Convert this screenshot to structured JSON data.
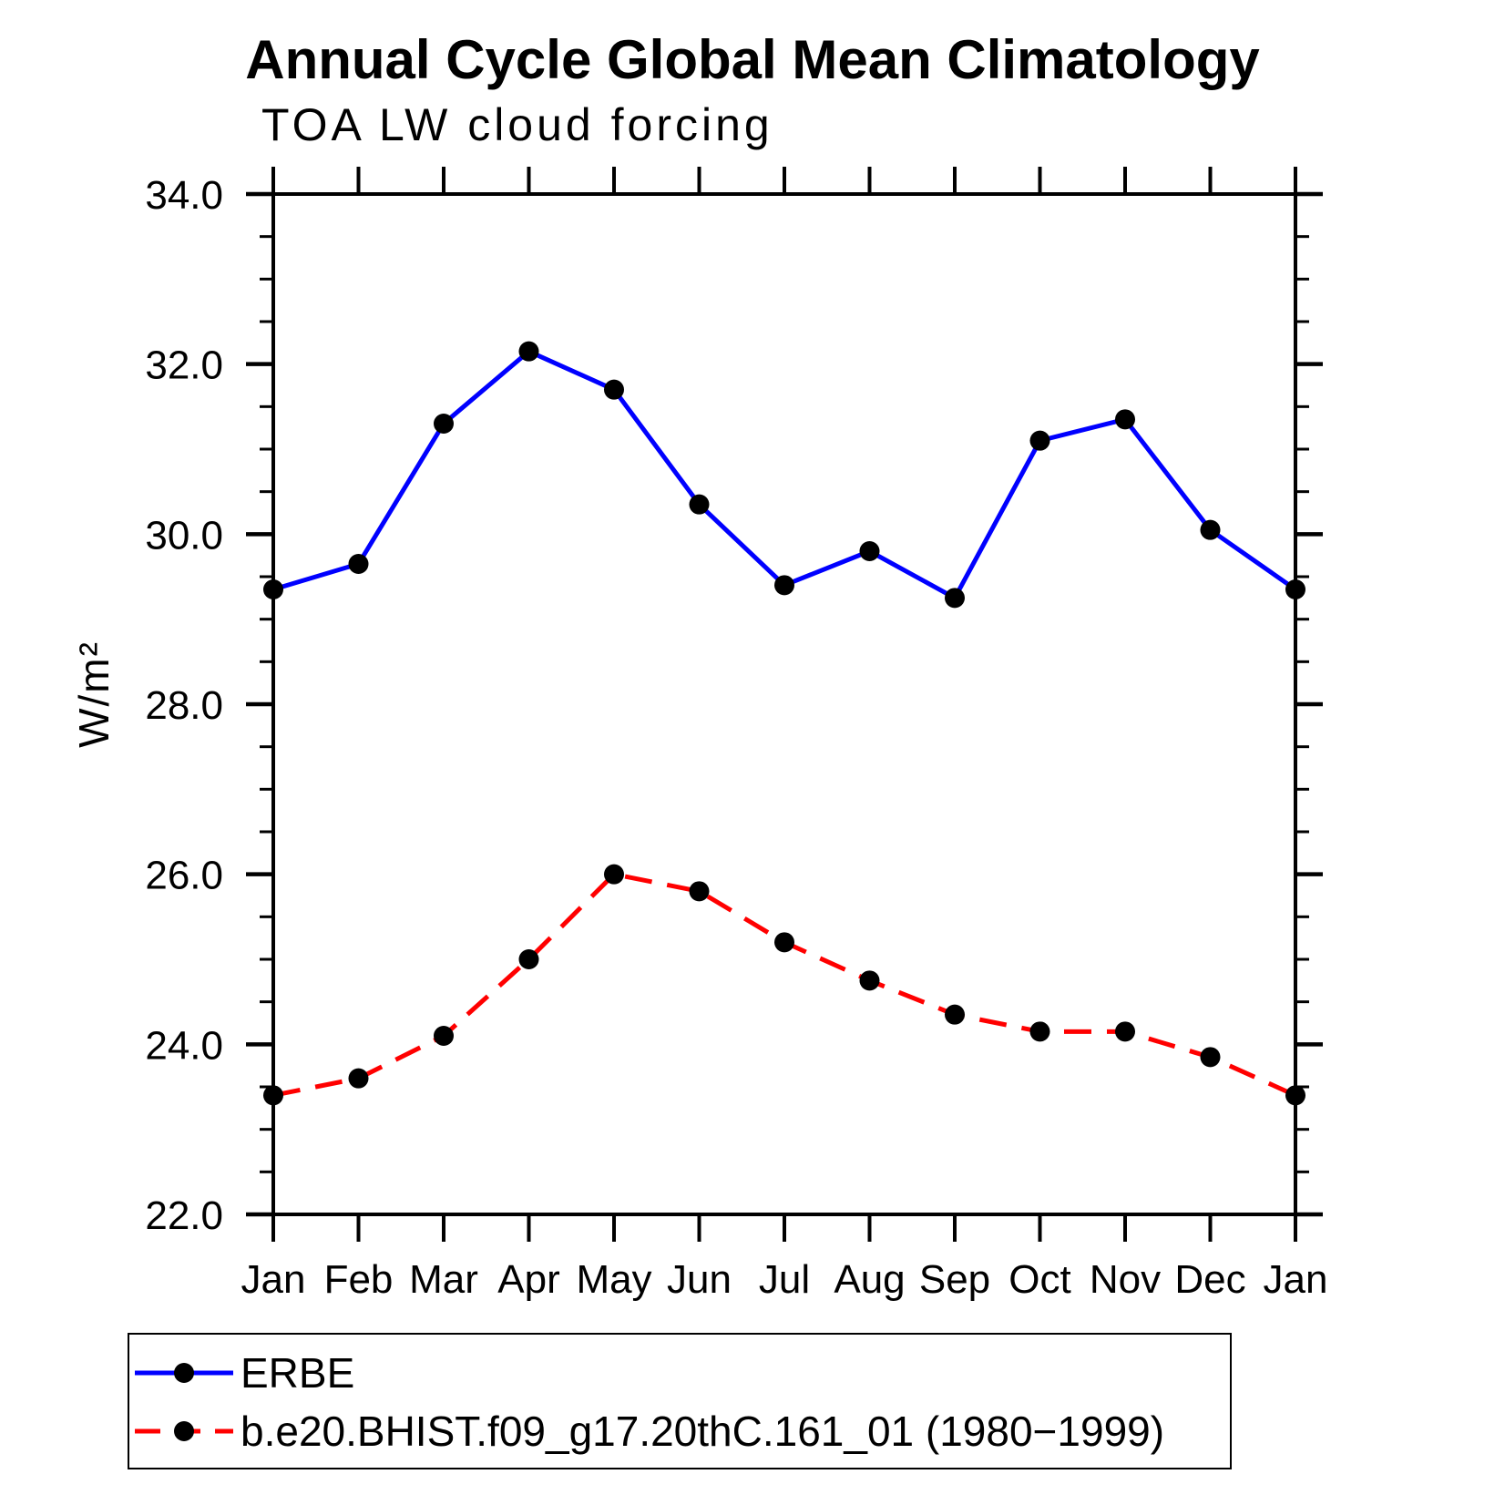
{
  "page": {
    "background": "#ffffff"
  },
  "chart": {
    "title": "Annual Cycle Global Mean Climatology",
    "subtitle": "TOA LW cloud forcing",
    "ylabel": "W/m²"
  },
  "legend": {
    "entries": [
      {
        "label": "ERBE",
        "color": "#0000ff",
        "style": "solid",
        "marker": "circle"
      },
      {
        "label": "b.e20.BHIST.f09_g17.20thC.161_01 (1980−1999)",
        "color": "#ff0000",
        "style": "dashed",
        "marker": "circle"
      }
    ]
  },
  "chart_data": {
    "type": "line",
    "title": "Annual Cycle Global Mean Climatology",
    "subtitle": "TOA LW cloud forcing",
    "xlabel": "",
    "ylabel": "W/m²",
    "categories": [
      "Jan",
      "Feb",
      "Mar",
      "Apr",
      "May",
      "Jun",
      "Jul",
      "Aug",
      "Sep",
      "Oct",
      "Nov",
      "Dec",
      "Jan"
    ],
    "series": [
      {
        "name": "ERBE",
        "color": "#0000ff",
        "style": "solid",
        "marker": "circle",
        "marker_color": "#000000",
        "values": [
          29.35,
          29.65,
          31.3,
          32.15,
          31.7,
          30.35,
          29.4,
          29.8,
          29.25,
          31.1,
          31.35,
          30.05,
          29.35
        ]
      },
      {
        "name": "b.e20.BHIST.f09_g17.20thC.161_01 (1980−1999)",
        "color": "#ff0000",
        "style": "dashed",
        "marker": "circle",
        "marker_color": "#000000",
        "values": [
          23.4,
          23.6,
          24.1,
          25.0,
          26.0,
          25.8,
          25.2,
          24.75,
          24.35,
          24.15,
          24.15,
          23.85,
          23.4
        ]
      }
    ],
    "ylim": [
      22.0,
      34.0
    ],
    "ytick_major_interval": 2.0,
    "ytick_minor_interval": 0.5,
    "ytick_labels": [
      "22.0",
      "24.0",
      "26.0",
      "28.0",
      "30.0",
      "32.0",
      "34.0"
    ],
    "grid": false,
    "frame": "box-with-outward-ticks",
    "legend_position": "bottom-left-box"
  }
}
